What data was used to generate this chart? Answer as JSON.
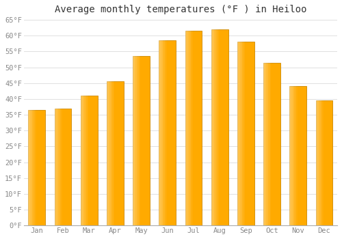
{
  "title": "Average monthly temperatures (°F ) in Heiloo",
  "months": [
    "Jan",
    "Feb",
    "Mar",
    "Apr",
    "May",
    "Jun",
    "Jul",
    "Aug",
    "Sep",
    "Oct",
    "Nov",
    "Dec"
  ],
  "values": [
    36.5,
    37.0,
    41.0,
    45.5,
    53.5,
    58.5,
    61.5,
    62.0,
    58.0,
    51.5,
    44.0,
    39.5
  ],
  "bar_color_light": "#FFD966",
  "bar_color_main": "#FFAA00",
  "bar_color_edge": "#CC8800",
  "background_color": "#FFFFFF",
  "grid_color": "#E0E0E0",
  "ylim": [
    0,
    65
  ],
  "yticks": [
    0,
    5,
    10,
    15,
    20,
    25,
    30,
    35,
    40,
    45,
    50,
    55,
    60,
    65
  ],
  "ytick_labels": [
    "0°F",
    "5°F",
    "10°F",
    "15°F",
    "20°F",
    "25°F",
    "30°F",
    "35°F",
    "40°F",
    "45°F",
    "50°F",
    "55°F",
    "60°F",
    "65°F"
  ],
  "tick_color": "#888888",
  "title_fontsize": 10,
  "tick_fontsize": 7.5,
  "bar_width": 0.65
}
